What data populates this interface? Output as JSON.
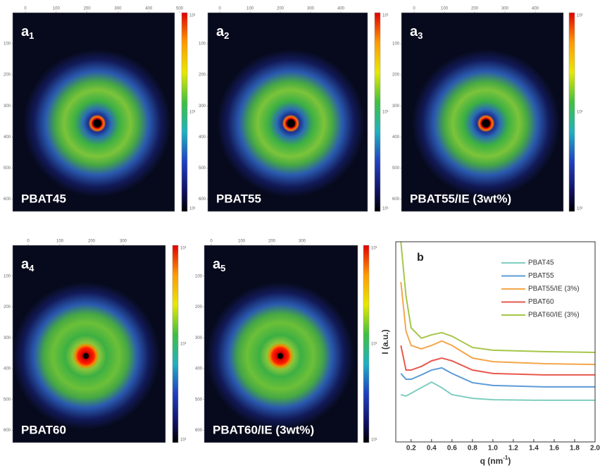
{
  "panels": [
    {
      "label": "a",
      "subscript": "1",
      "name": "PBAT45",
      "xticks": [
        0,
        100,
        200,
        300,
        400,
        500
      ],
      "yticks": [
        100,
        200,
        300,
        400,
        500,
        600
      ],
      "xlim": [
        0,
        500
      ],
      "ylim": [
        0,
        640
      ],
      "colorbar_labels": [
        "10¹",
        "10¹",
        "10¹"
      ]
    },
    {
      "label": "a",
      "subscript": "2",
      "name": "PBAT55",
      "xticks": [
        0,
        100,
        200,
        300,
        400
      ],
      "yticks": [
        100,
        200,
        300,
        400,
        500,
        600
      ],
      "xlim": [
        0,
        500
      ],
      "ylim": [
        0,
        640
      ],
      "colorbar_labels": [
        "10¹",
        "10¹",
        "10¹"
      ]
    },
    {
      "label": "a",
      "subscript": "3",
      "name": "PBAT55/IE (3wt%)",
      "xticks": [
        0,
        100,
        200,
        300,
        400
      ],
      "yticks": [
        100,
        200,
        300,
        400,
        500,
        600
      ],
      "xlim": [
        0,
        500
      ],
      "ylim": [
        0,
        640
      ],
      "colorbar_labels": [
        "10¹",
        "10¹",
        "10¹"
      ]
    },
    {
      "label": "a",
      "subscript": "4",
      "name": "PBAT60",
      "xticks": [
        0,
        100,
        200,
        300
      ],
      "yticks": [
        100,
        200,
        300,
        400,
        500,
        600
      ],
      "xlim": [
        0,
        400
      ],
      "ylim": [
        0,
        640
      ],
      "colorbar_labels": [
        "10¹",
        "10¹",
        "10¹"
      ]
    },
    {
      "label": "a",
      "subscript": "5",
      "name": "PBAT60/IE (3wt%)",
      "xticks": [
        0,
        100,
        200,
        300
      ],
      "yticks": [
        100,
        200,
        300,
        400,
        500,
        600
      ],
      "xlim": [
        0,
        400
      ],
      "ylim": [
        0,
        640
      ],
      "colorbar_labels": [
        "10¹",
        "10¹",
        "10¹"
      ]
    }
  ],
  "chart_data": {
    "type": "line",
    "label": "b",
    "xlabel": "q (nm",
    "xlabel_sup": "-1",
    "xlabel_end": ")",
    "ylabel": "I (a.u.)",
    "x": [
      0.1,
      0.15,
      0.2,
      0.3,
      0.4,
      0.5,
      0.6,
      0.8,
      1.0,
      1.5,
      2.0
    ],
    "xlim": [
      0.05,
      2.0
    ],
    "xticks": [
      0.2,
      0.4,
      0.6,
      0.8,
      {
        "value": 1,
        "label": "1.0"
      },
      1.2,
      1.4,
      1.6,
      1.8,
      {
        "value": 2,
        "label": "2.0"
      }
    ],
    "ylim": [
      0,
      100
    ],
    "legend": "upper right",
    "series": [
      {
        "name": "PBAT45",
        "color": "#7fcdc0",
        "values": [
          23.6,
          22.9,
          24.3,
          27.1,
          29.9,
          27.1,
          23.6,
          21.8,
          21.1,
          20.8,
          20.8
        ]
      },
      {
        "name": "PBAT55",
        "color": "#5b9bd5",
        "values": [
          34.2,
          31.3,
          31.3,
          33.5,
          35.9,
          37.0,
          34.2,
          29.6,
          28.2,
          27.5,
          27.5
        ]
      },
      {
        "name": "PBAT55/IE (3%)",
        "color": "#f4a64a",
        "values": [
          79.9,
          55.3,
          48.2,
          46.5,
          48.2,
          50.4,
          48.2,
          41.9,
          40.1,
          39.1,
          38.7
        ]
      },
      {
        "name": "PBAT60",
        "color": "#e8584d",
        "values": [
          48.2,
          35.9,
          35.9,
          37.7,
          40.5,
          41.9,
          40.5,
          35.9,
          34.2,
          33.5,
          33.5
        ]
      },
      {
        "name": "PBAT60/IE (3%)",
        "color": "#a5c64a",
        "values": [
          100,
          72.9,
          57.0,
          51.8,
          53.5,
          54.6,
          52.8,
          47.2,
          45.8,
          45.1,
          44.7
        ]
      }
    ]
  }
}
